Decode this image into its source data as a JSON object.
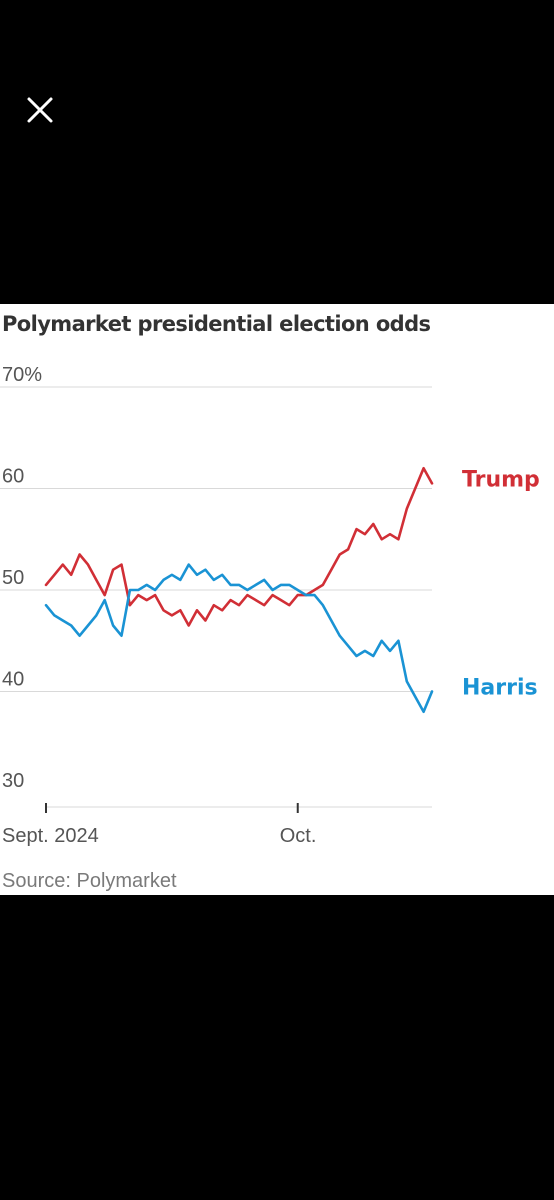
{
  "viewer": {
    "close_icon": "close-icon"
  },
  "chart_data": {
    "type": "line",
    "title": "Polymarket presidential election odds",
    "source": "Source: Polymarket",
    "ylim": [
      30,
      70
    ],
    "y_ticks": [
      {
        "value": 70,
        "label": "70%"
      },
      {
        "value": 60,
        "label": "60"
      },
      {
        "value": 50,
        "label": "50"
      },
      {
        "value": 40,
        "label": "40"
      },
      {
        "value": 30,
        "label": "30"
      }
    ],
    "xlim": [
      "2024-09-01",
      "2024-10-17"
    ],
    "x_ticks": [
      {
        "value": "2024-09-01",
        "label": "Sept. 2024"
      },
      {
        "value": "2024-10-01",
        "label": "Oct."
      }
    ],
    "grid": true,
    "legend": "direct labels at line ends",
    "series": [
      {
        "name": "Trump",
        "color": "#d12f36",
        "x": [
          "2024-09-01",
          "2024-09-02",
          "2024-09-03",
          "2024-09-04",
          "2024-09-05",
          "2024-09-06",
          "2024-09-07",
          "2024-09-08",
          "2024-09-09",
          "2024-09-10",
          "2024-09-11",
          "2024-09-12",
          "2024-09-13",
          "2024-09-14",
          "2024-09-15",
          "2024-09-16",
          "2024-09-17",
          "2024-09-18",
          "2024-09-19",
          "2024-09-20",
          "2024-09-21",
          "2024-09-22",
          "2024-09-23",
          "2024-09-24",
          "2024-09-25",
          "2024-09-26",
          "2024-09-27",
          "2024-09-28",
          "2024-09-29",
          "2024-09-30",
          "2024-10-01",
          "2024-10-02",
          "2024-10-03",
          "2024-10-04",
          "2024-10-05",
          "2024-10-06",
          "2024-10-07",
          "2024-10-08",
          "2024-10-09",
          "2024-10-10",
          "2024-10-11",
          "2024-10-12",
          "2024-10-13",
          "2024-10-14",
          "2024-10-15",
          "2024-10-16",
          "2024-10-17"
        ],
        "values": [
          50.5,
          51.5,
          52.5,
          51.5,
          53.5,
          52.5,
          51.0,
          49.5,
          52.0,
          52.5,
          48.5,
          49.5,
          49.0,
          49.5,
          48.0,
          47.5,
          48.0,
          46.5,
          48.0,
          47.0,
          48.5,
          48.0,
          49.0,
          48.5,
          49.5,
          49.0,
          48.5,
          49.5,
          49.0,
          48.5,
          49.5,
          49.5,
          50.0,
          50.5,
          52.0,
          53.5,
          54.0,
          56.0,
          55.5,
          56.5,
          55.0,
          55.5,
          55.0,
          58.0,
          60.0,
          62.0,
          60.5
        ]
      },
      {
        "name": "Harris",
        "color": "#1a93d4",
        "x": [
          "2024-09-01",
          "2024-09-02",
          "2024-09-03",
          "2024-09-04",
          "2024-09-05",
          "2024-09-06",
          "2024-09-07",
          "2024-09-08",
          "2024-09-09",
          "2024-09-10",
          "2024-09-11",
          "2024-09-12",
          "2024-09-13",
          "2024-09-14",
          "2024-09-15",
          "2024-09-16",
          "2024-09-17",
          "2024-09-18",
          "2024-09-19",
          "2024-09-20",
          "2024-09-21",
          "2024-09-22",
          "2024-09-23",
          "2024-09-24",
          "2024-09-25",
          "2024-09-26",
          "2024-09-27",
          "2024-09-28",
          "2024-09-29",
          "2024-09-30",
          "2024-10-01",
          "2024-10-02",
          "2024-10-03",
          "2024-10-04",
          "2024-10-05",
          "2024-10-06",
          "2024-10-07",
          "2024-10-08",
          "2024-10-09",
          "2024-10-10",
          "2024-10-11",
          "2024-10-12",
          "2024-10-13",
          "2024-10-14",
          "2024-10-15",
          "2024-10-16",
          "2024-10-17"
        ],
        "values": [
          48.5,
          47.5,
          47.0,
          46.5,
          45.5,
          46.5,
          47.5,
          49.0,
          46.5,
          45.5,
          50.0,
          50.0,
          50.5,
          50.0,
          51.0,
          51.5,
          51.0,
          52.5,
          51.5,
          52.0,
          51.0,
          51.5,
          50.5,
          50.5,
          50.0,
          50.5,
          51.0,
          50.0,
          50.5,
          50.5,
          50.0,
          49.5,
          49.5,
          48.5,
          47.0,
          45.5,
          44.5,
          43.5,
          44.0,
          43.5,
          45.0,
          44.0,
          45.0,
          41.0,
          39.5,
          38.0,
          40.0
        ]
      }
    ]
  }
}
